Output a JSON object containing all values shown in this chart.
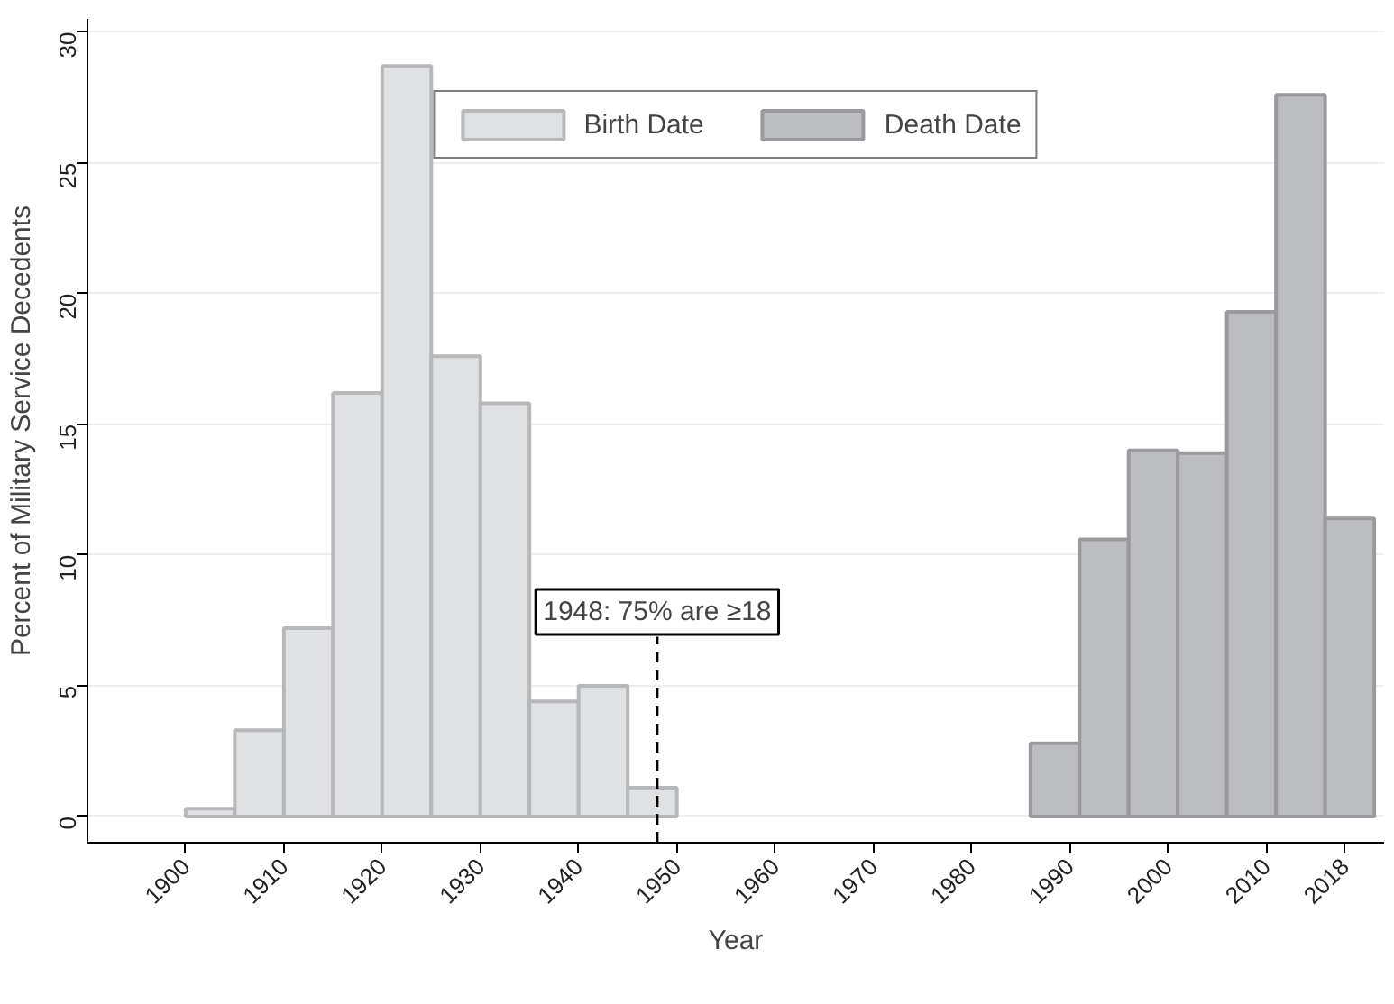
{
  "chart_data": {
    "type": "histogram",
    "xlabel": "Year",
    "ylabel": "Percent of Military Service Decedents",
    "bins": [
      1900,
      1905,
      1910,
      1915,
      1920,
      1925,
      1930,
      1935,
      1940,
      1945,
      1950,
      1986,
      1991,
      1996,
      2001,
      2006,
      2011,
      2016,
      2021
    ],
    "series": [
      {
        "name": "Birth Date",
        "color": "#e0e1e3",
        "values": [
          0.3,
          3.3,
          7.2,
          16.2,
          28.7,
          17.6,
          15.8,
          4.4,
          5.0,
          1.1,
          null,
          null,
          null,
          null,
          null,
          null,
          null,
          null
        ]
      },
      {
        "name": "Death Date",
        "color": "#bcbdc1",
        "values": [
          null,
          null,
          null,
          null,
          null,
          null,
          null,
          null,
          null,
          null,
          null,
          2.8,
          10.6,
          14.0,
          13.9,
          19.3,
          27.6,
          11.4
        ]
      }
    ],
    "ref_lines": [
      {
        "axis": "x",
        "value": 1948,
        "label": "1948: 75% are ≥18",
        "line_style": "dashed",
        "color": "#000000"
      }
    ],
    "xlim": [
      1890,
      2022
    ],
    "ylim": [
      -1,
      30.5
    ],
    "xticks": [
      1900,
      1910,
      1920,
      1930,
      1940,
      1950,
      1960,
      1970,
      1980,
      1990,
      2000,
      2010,
      2018
    ],
    "yticks": [
      0,
      5,
      10,
      15,
      20,
      25,
      30
    ],
    "grid": "y",
    "legend": "top"
  }
}
